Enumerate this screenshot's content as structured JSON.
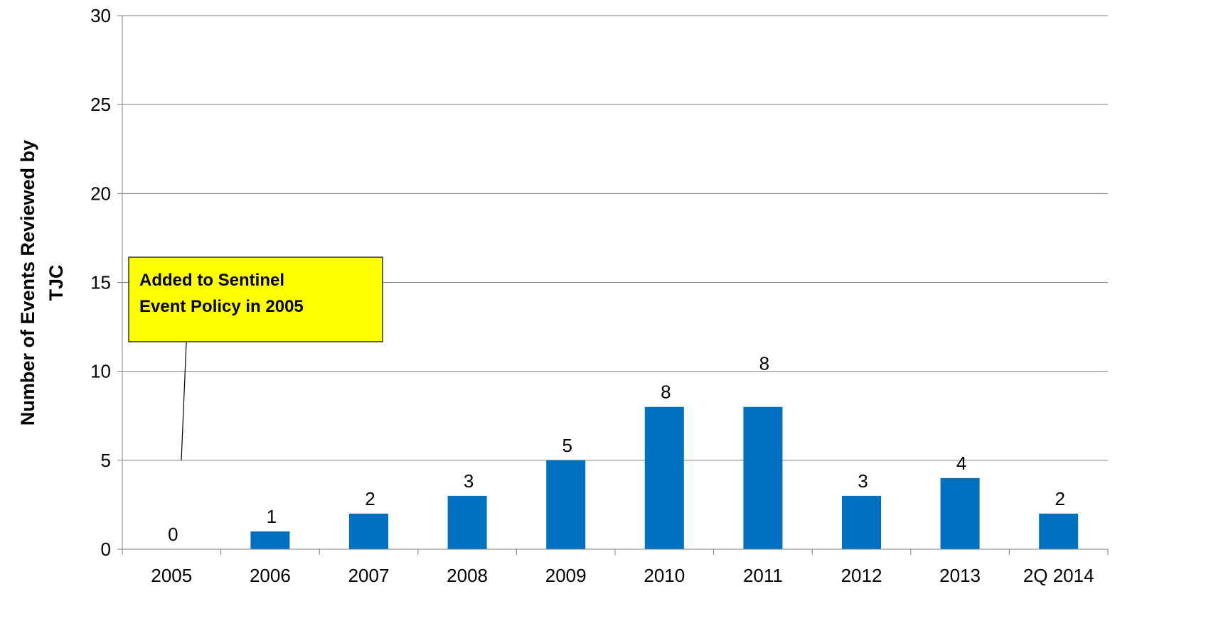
{
  "chart_data": {
    "type": "bar",
    "categories": [
      "2005",
      "2006",
      "2007",
      "2008",
      "2009",
      "2010",
      "2011",
      "2012",
      "2013",
      "2Q 2014"
    ],
    "values": [
      0,
      1,
      2,
      3,
      5,
      8,
      8,
      3,
      4,
      2
    ],
    "data_labels": [
      "0",
      "1",
      "2",
      "3",
      "5",
      "8",
      "8",
      "3",
      "4",
      "2"
    ],
    "title": "",
    "xlabel": "",
    "ylabel_lines": [
      "Number of Events Reviewed by",
      "TJC"
    ],
    "ylim": [
      0,
      30
    ],
    "yticks": [
      "0",
      "5",
      "10",
      "15",
      "20",
      "25",
      "30"
    ],
    "grid": true,
    "bar_color": "#0070C0",
    "annotation": {
      "lines": [
        "Added to Sentinel",
        "Event Policy in 2005"
      ],
      "fill_color": "#FFFF00",
      "target_category": "2005"
    }
  }
}
